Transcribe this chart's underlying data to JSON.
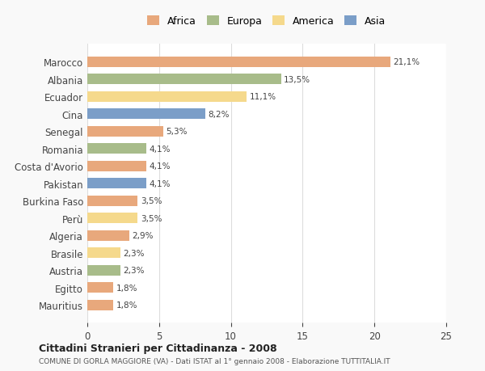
{
  "countries": [
    "Marocco",
    "Albania",
    "Ecuador",
    "Cina",
    "Senegal",
    "Romania",
    "Costa d'Avorio",
    "Pakistan",
    "Burkina Faso",
    "Perù",
    "Algeria",
    "Brasile",
    "Austria",
    "Egitto",
    "Mauritius"
  ],
  "values": [
    21.1,
    13.5,
    11.1,
    8.2,
    5.3,
    4.1,
    4.1,
    4.1,
    3.5,
    3.5,
    2.9,
    2.3,
    2.3,
    1.8,
    1.8
  ],
  "labels": [
    "21,1%",
    "13,5%",
    "11,1%",
    "8,2%",
    "5,3%",
    "4,1%",
    "4,1%",
    "4,1%",
    "3,5%",
    "3,5%",
    "2,9%",
    "2,3%",
    "2,3%",
    "1,8%",
    "1,8%"
  ],
  "continents": [
    "Africa",
    "Europa",
    "America",
    "Asia",
    "Africa",
    "Europa",
    "Africa",
    "Asia",
    "Africa",
    "America",
    "Africa",
    "America",
    "Europa",
    "Africa",
    "Africa"
  ],
  "colors": {
    "Africa": "#E8A87C",
    "Europa": "#A8BC8A",
    "America": "#F5D98C",
    "Asia": "#7B9EC8"
  },
  "legend_order": [
    "Africa",
    "Europa",
    "America",
    "Asia"
  ],
  "title1": "Cittadini Stranieri per Cittadinanza - 2008",
  "title2": "COMUNE DI GORLA MAGGIORE (VA) - Dati ISTAT al 1° gennaio 2008 - Elaborazione TUTTITALIA.IT",
  "xlim": [
    0,
    25
  ],
  "xticks": [
    0,
    5,
    10,
    15,
    20,
    25
  ],
  "background_color": "#f9f9f9",
  "bar_background": "#ffffff"
}
